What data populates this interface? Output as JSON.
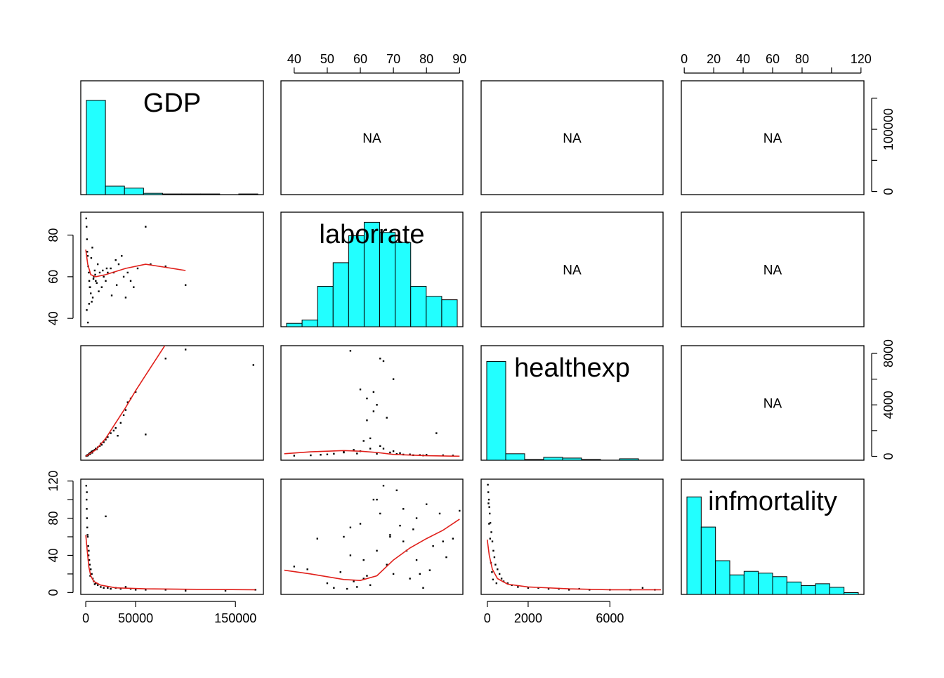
{
  "chart_data": {
    "type": "scatter",
    "variables": [
      "GDP",
      "laborrate",
      "healthexp",
      "infmortality"
    ],
    "upper_panel_text": "NA",
    "colors": {
      "histogram_fill": "#22FFFF",
      "smooth_line": "#E0201B",
      "points": "#000000",
      "frame": "#000000"
    },
    "axes": {
      "GDP": {
        "range": [
          -5000,
          178000
        ],
        "ticks": [
          0,
          50000,
          150000
        ],
        "tick_labels": [
          "0",
          "50000",
          "150000"
        ],
        "location": "bottom"
      },
      "laborrate": {
        "range": [
          36,
          91
        ],
        "ticks": [
          40,
          50,
          60,
          70,
          80,
          90
        ],
        "tick_labels": [
          "40",
          "50",
          "60",
          "70",
          "80",
          "90"
        ],
        "location": "top-and-left",
        "left_ticks": [
          40,
          60,
          80
        ],
        "left_tick_labels": [
          "40",
          "60",
          "80"
        ]
      },
      "healthexp": {
        "range": [
          -300,
          8600
        ],
        "ticks": [
          0,
          2000,
          6000
        ],
        "tick_labels": [
          "0",
          "2000",
          "6000"
        ],
        "location": "bottom-and-right",
        "right_ticks": [
          0,
          2000,
          4000,
          6000,
          8000
        ],
        "right_tick_labels": [
          "0",
          "",
          "4000",
          "",
          "8000"
        ]
      },
      "infmortality": {
        "range": [
          -2,
          122
        ],
        "ticks": [
          0,
          20,
          40,
          60,
          80,
          100,
          120
        ],
        "tick_labels": [
          "0",
          "20",
          "40",
          "60",
          "80",
          "",
          "120"
        ],
        "location": "top-and-left",
        "left_ticks": [
          0,
          20,
          40,
          60,
          80,
          100,
          120
        ],
        "left_tick_labels": [
          "0",
          "",
          "40",
          "",
          "80",
          "",
          "120"
        ]
      },
      "GDP_right": {
        "ticks": [
          0,
          50000,
          100000,
          150000
        ],
        "tick_labels": [
          "0",
          "",
          "100000",
          ""
        ],
        "location": "right"
      }
    },
    "histograms": {
      "GDP": {
        "breaks": [
          0,
          20000,
          40000,
          60000,
          80000,
          100000,
          120000,
          140000,
          160000,
          180000
        ],
        "counts": [
          145,
          13,
          10,
          2,
          1,
          1,
          1,
          0,
          1
        ]
      },
      "laborrate": {
        "breaks": [
          35,
          40,
          45,
          50,
          55,
          60,
          65,
          70,
          75,
          80,
          85,
          90
        ],
        "counts": [
          1,
          2,
          12,
          19,
          27,
          31,
          28,
          25,
          12,
          9,
          8
        ]
      },
      "healthexp": {
        "breaks": [
          0,
          1000,
          2000,
          3000,
          4000,
          5000,
          6000,
          7000,
          8000,
          9000
        ],
        "counts": [
          138,
          9,
          1,
          4,
          3,
          1,
          0,
          2,
          0
        ]
      },
      "infmortality": {
        "breaks": [
          0,
          10,
          20,
          30,
          40,
          50,
          60,
          70,
          80,
          90,
          100,
          110,
          120
        ],
        "counts": [
          55,
          38,
          19,
          11,
          13,
          12,
          10,
          7,
          5,
          6,
          4,
          1
        ]
      }
    },
    "scatter": {
      "GDP_vs_laborrate_x": [
        500,
        800,
        1200,
        1500,
        2000,
        2500,
        3000,
        3500,
        4000,
        5000,
        6000,
        7000,
        8000,
        9000,
        10000,
        12000,
        14000,
        16000,
        18000,
        20000,
        22000,
        25000,
        28000,
        30000,
        33000,
        36000,
        38000,
        40000,
        42000,
        45000,
        48000,
        52000,
        60000,
        65000,
        80000,
        100000,
        1000,
        2200,
        3300,
        4400,
        5500,
        6600,
        7700,
        9500,
        11000,
        13000,
        17000,
        21000,
        26000,
        31000
      ],
      "GDP_vs_laborrate_y": [
        88,
        84,
        78,
        72,
        70,
        65,
        62,
        58,
        55,
        52,
        48,
        50,
        60,
        63,
        58,
        66,
        62,
        55,
        60,
        58,
        62,
        64,
        62,
        68,
        66,
        70,
        60,
        50,
        62,
        58,
        55,
        64,
        84,
        66,
        65,
        56,
        44,
        38,
        47,
        55,
        69,
        74,
        59,
        61,
        57,
        53,
        63,
        64,
        51,
        56
      ],
      "GDP_vs_health_x": [
        500,
        800,
        1000,
        1500,
        2000,
        2500,
        3000,
        3500,
        4000,
        5000,
        6000,
        7000,
        8000,
        9000,
        10000,
        12000,
        14000,
        16000,
        18000,
        20000,
        22000,
        25000,
        28000,
        30000,
        32000,
        35000,
        38000,
        40000,
        42000,
        45000,
        50000,
        60000,
        80000,
        100000,
        168000,
        2000,
        4500,
        6500,
        11000,
        15000
      ],
      "GDP_vs_health_y": [
        30,
        40,
        60,
        80,
        100,
        120,
        150,
        200,
        250,
        300,
        380,
        400,
        450,
        500,
        600,
        700,
        800,
        900,
        1100,
        1300,
        1500,
        1800,
        2000,
        2200,
        1600,
        2600,
        3200,
        3600,
        4200,
        4500,
        5000,
        1700,
        7600,
        8300,
        7100,
        60,
        180,
        280,
        550,
        1000
      ],
      "GDP_vs_infm_x": [
        500,
        800,
        1000,
        1200,
        1500,
        2000,
        2500,
        3000,
        3500,
        4000,
        5000,
        6000,
        7000,
        8000,
        10000,
        12000,
        15000,
        18000,
        20000,
        25000,
        30000,
        35000,
        40000,
        45000,
        50000,
        60000,
        80000,
        100000,
        140000,
        170000,
        1100,
        1800,
        2800,
        4500,
        9000,
        22000
      ],
      "GDP_vs_infm_y": [
        115,
        100,
        90,
        80,
        70,
        60,
        50,
        45,
        35,
        30,
        25,
        20,
        15,
        12,
        10,
        8,
        6,
        5,
        82,
        4,
        5,
        4,
        6,
        4,
        3,
        3,
        3,
        2,
        2,
        3,
        108,
        62,
        40,
        18,
        9,
        5
      ],
      "labor_vs_health_x": [
        40,
        45,
        48,
        50,
        52,
        55,
        57,
        58,
        60,
        60,
        61,
        62,
        62,
        63,
        64,
        64,
        65,
        66,
        66,
        67,
        68,
        70,
        70,
        72,
        75,
        78,
        80,
        83,
        85,
        88,
        55,
        59,
        63,
        65,
        67,
        69,
        71,
        73,
        76,
        79
      ],
      "labor_vs_health_y": [
        50,
        80,
        120,
        150,
        200,
        300,
        8200,
        500,
        5200,
        400,
        1200,
        2800,
        4500,
        600,
        5000,
        3500,
        200,
        800,
        7600,
        7400,
        3000,
        6000,
        400,
        250,
        150,
        100,
        120,
        1800,
        80,
        60,
        350,
        220,
        1400,
        4000,
        600,
        300,
        180,
        140,
        90,
        70
      ],
      "labor_vs_infm_x": [
        40,
        44,
        47,
        50,
        52,
        54,
        55,
        56,
        57,
        58,
        59,
        60,
        61,
        62,
        63,
        64,
        65,
        66,
        67,
        68,
        69,
        70,
        71,
        72,
        73,
        74,
        75,
        76,
        77,
        78,
        79,
        80,
        82,
        84,
        86,
        88,
        90,
        57,
        61,
        65,
        69,
        73,
        77,
        81,
        85
      ],
      "labor_vs_infm_y": [
        28,
        25,
        58,
        10,
        5,
        22,
        60,
        4,
        70,
        12,
        6,
        74,
        35,
        18,
        8,
        100,
        45,
        85,
        115,
        30,
        60,
        20,
        110,
        72,
        55,
        45,
        15,
        68,
        80,
        20,
        5,
        95,
        50,
        85,
        38,
        58,
        88,
        40,
        15,
        100,
        62,
        90,
        35,
        24,
        55
      ],
      "health_vs_infm_x": [
        30,
        50,
        80,
        100,
        120,
        150,
        200,
        250,
        300,
        350,
        400,
        500,
        600,
        700,
        800,
        1000,
        1200,
        1500,
        2000,
        2500,
        3000,
        3500,
        4000,
        4500,
        5000,
        6000,
        7000,
        7600,
        8200,
        60,
        90,
        140,
        180,
        230,
        280,
        450
      ],
      "health_vs_infm_y": [
        116,
        108,
        100,
        92,
        85,
        75,
        65,
        55,
        45,
        38,
        30,
        25,
        20,
        15,
        12,
        10,
        8,
        6,
        5,
        5,
        4,
        4,
        3,
        4,
        3,
        3,
        3,
        5,
        3,
        96,
        74,
        58,
        32,
        22,
        14,
        10
      ]
    },
    "smooths": {
      "GDP_laborrate": {
        "x": [
          0,
          2000,
          5000,
          10000,
          20000,
          40000,
          60000,
          80000,
          100000
        ],
        "y": [
          73,
          66,
          61,
          60,
          61,
          64,
          66,
          64.5,
          63
        ]
      },
      "GDP_healthexp": {
        "x": [
          0,
          10000,
          20000,
          30000,
          40000,
          50000,
          60000,
          80000
        ],
        "y": [
          0,
          500,
          1400,
          2600,
          3800,
          5100,
          6300,
          8700
        ]
      },
      "GDP_infmortality": {
        "x": [
          0,
          1500,
          3000,
          5000,
          8000,
          15000,
          30000,
          60000,
          100000,
          170000
        ],
        "y": [
          62,
          45,
          28,
          18,
          12,
          8,
          5,
          4,
          3.5,
          3
        ]
      },
      "laborrate_healthexp": {
        "x": [
          37,
          45,
          55,
          60,
          65,
          70,
          80,
          90
        ],
        "y": [
          200,
          350,
          450,
          400,
          300,
          150,
          50,
          10
        ]
      },
      "laborrate_infmortality": {
        "x": [
          37,
          45,
          55,
          60,
          65,
          70,
          75,
          80,
          85,
          90
        ],
        "y": [
          24,
          20,
          14,
          13,
          18,
          35,
          48,
          58,
          67,
          79
        ]
      },
      "healthexp_infmortality": {
        "x": [
          0,
          100,
          250,
          500,
          1000,
          2000,
          4000,
          6000,
          8500
        ],
        "y": [
          57,
          40,
          25,
          15,
          9,
          6,
          4,
          3,
          3
        ]
      }
    }
  }
}
